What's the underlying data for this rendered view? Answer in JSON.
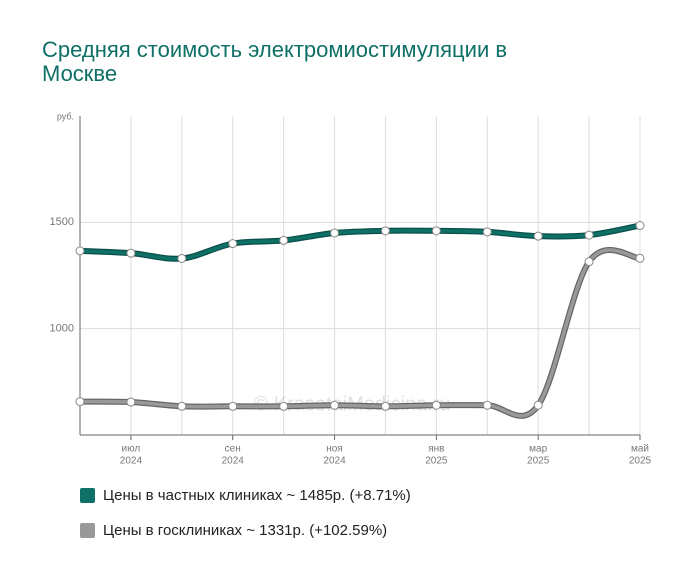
{
  "chart_data": {
    "type": "line",
    "title": "Средняя стоимость электромиостимуляции в Москве",
    "y_unit": "руб.",
    "watermark": "© KrasotaiMedicina.ru",
    "categories": [
      null,
      [
        "июл",
        "2024"
      ],
      null,
      [
        "сен",
        "2024"
      ],
      null,
      [
        "ноя",
        "2024"
      ],
      null,
      [
        "янв",
        "2025"
      ],
      null,
      [
        "мар",
        "2025"
      ],
      null,
      [
        "май",
        "2025"
      ]
    ],
    "series": [
      {
        "name": "Цены в частных клиниках ~ 1485р. (+8.71%)",
        "color": "#0e7066",
        "values": [
          1366,
          1355,
          1330,
          1400,
          1415,
          1450,
          1460,
          1460,
          1455,
          1435,
          1440,
          1485
        ]
      },
      {
        "name": "Цены в госклиниках ~ 1331р. (+102.59%)",
        "color": "#999999",
        "values": [
          657,
          655,
          635,
          635,
          635,
          640,
          635,
          640,
          640,
          640,
          1315,
          1331
        ]
      }
    ],
    "ylim": [
      500,
      2000
    ],
    "yticks": [
      1000,
      1500
    ],
    "grid": true
  }
}
